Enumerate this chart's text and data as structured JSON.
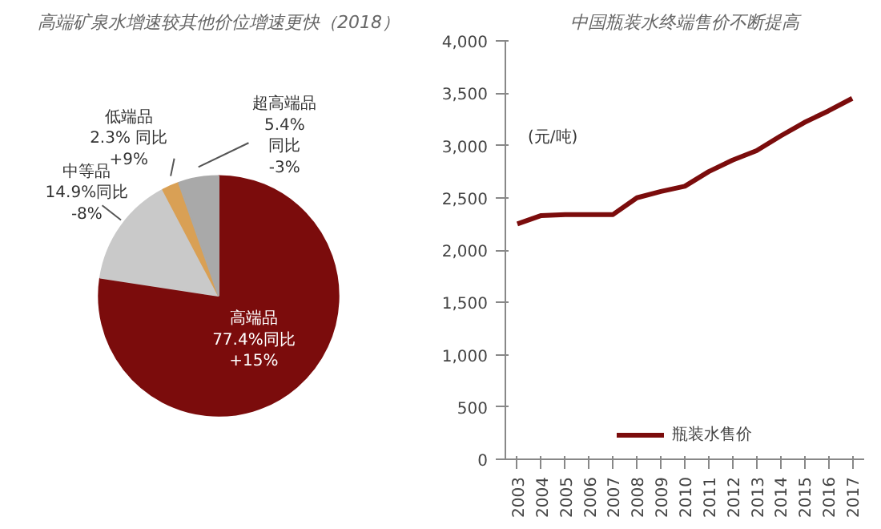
{
  "chart_data": [
    {
      "type": "pie",
      "title": "高端矿泉水增速较其他价位增速更快（2018）",
      "categories": [
        "高端品",
        "中等品",
        "低端品",
        "超高端品"
      ],
      "values": [
        77.4,
        14.9,
        2.3,
        5.4
      ],
      "colors": [
        "#7b0c0c",
        "#c9c9c9",
        "#d9a055",
        "#a9a9a9"
      ],
      "value_labels": [
        "77.4%同比\n+15%",
        "14.9%同比\n-8%",
        "2.3% 同比\n+9%",
        "5.4%\n同比\n-3%"
      ]
    },
    {
      "type": "line",
      "title": "中国瓶装水终端售价不断提高",
      "ylabel": "(元/吨)",
      "categories": [
        "2003",
        "2004",
        "2005",
        "2006",
        "2007",
        "2008",
        "2009",
        "2010",
        "2011",
        "2012",
        "2013",
        "2014",
        "2015",
        "2016",
        "2017"
      ],
      "series": [
        {
          "name": "瓶装水售价",
          "color": "#7b0c0c",
          "values": [
            2250,
            2330,
            2340,
            2340,
            2340,
            2500,
            2560,
            2610,
            2750,
            2860,
            2950,
            3090,
            3220,
            3330,
            3450
          ]
        }
      ],
      "ylim": [
        0,
        4000
      ],
      "yticks": [
        0,
        {
          "value": 500,
          "label": "500"
        },
        {
          "value": 1000,
          "label": "1,000"
        },
        {
          "value": 1500,
          "label": "1,500"
        },
        {
          "value": 2000,
          "label": "2,000"
        },
        {
          "value": 2500,
          "label": "2,500"
        },
        {
          "value": 3000,
          "label": "3,000"
        },
        {
          "value": 3500,
          "label": "3,500"
        },
        {
          "value": 4000,
          "label": "4,000"
        }
      ],
      "grid": false,
      "legend": "bottom"
    }
  ]
}
